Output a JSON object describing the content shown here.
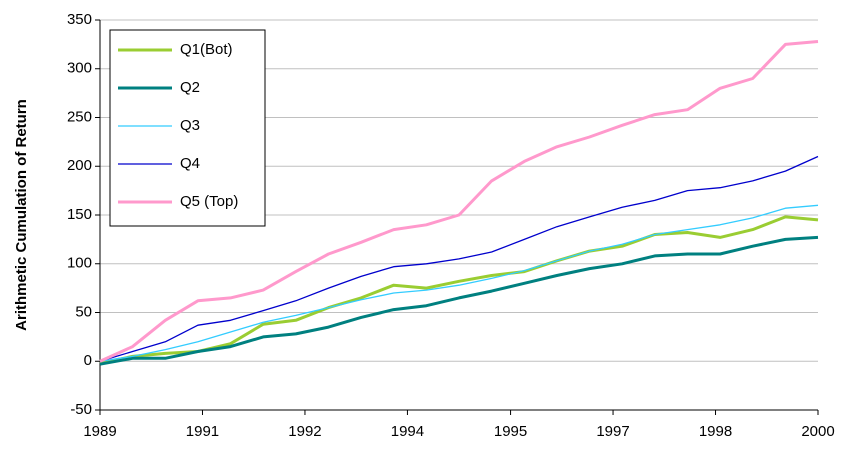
{
  "chart_data": {
    "type": "line",
    "y_label": "Arithmetic Cumulation of Return",
    "x": [
      1989,
      1989.5,
      1990,
      1990.5,
      1991,
      1991.5,
      1992,
      1992.5,
      1993,
      1993.5,
      1994,
      1994.5,
      1995,
      1995.5,
      1996,
      1996.5,
      1997,
      1997.5,
      1998,
      1998.5,
      1999,
      1999.5,
      2000
    ],
    "xlim": [
      1989,
      2000
    ],
    "xticks": [
      {
        "value": 1989,
        "label": "1989"
      },
      {
        "value": 1990.57,
        "label": "1991"
      },
      {
        "value": 1992.14,
        "label": "1992"
      },
      {
        "value": 1993.71,
        "label": "1994"
      },
      {
        "value": 1995.29,
        "label": "1995"
      },
      {
        "value": 1996.86,
        "label": "1997"
      },
      {
        "value": 1998.43,
        "label": "1998"
      },
      {
        "value": 2000,
        "label": "2000"
      }
    ],
    "ylim": [
      -50,
      350
    ],
    "yticks": [
      -50,
      0,
      50,
      100,
      150,
      200,
      250,
      300,
      350
    ],
    "grid": true,
    "legend": "top-left",
    "series": [
      {
        "name": "Q1(Bot)",
        "color": "#9acd32",
        "line_width": 3,
        "values": [
          -2,
          5,
          8,
          10,
          18,
          38,
          42,
          55,
          65,
          78,
          75,
          82,
          88,
          92,
          103,
          113,
          118,
          130,
          132,
          127,
          135,
          148,
          145
        ]
      },
      {
        "name": "Q2",
        "color": "#008080",
        "line_width": 3,
        "values": [
          -3,
          3,
          3,
          10,
          15,
          25,
          28,
          35,
          45,
          53,
          57,
          65,
          72,
          80,
          88,
          95,
          100,
          108,
          110,
          110,
          118,
          125,
          127
        ]
      },
      {
        "name": "Q3",
        "color": "#33ccff",
        "line_width": 1.3,
        "values": [
          0,
          5,
          12,
          20,
          30,
          40,
          47,
          55,
          63,
          70,
          73,
          78,
          85,
          93,
          103,
          113,
          120,
          130,
          135,
          140,
          147,
          157,
          160
        ]
      },
      {
        "name": "Q4",
        "color": "#0000cc",
        "line_width": 1.3,
        "values": [
          0,
          10,
          20,
          37,
          42,
          52,
          62,
          75,
          87,
          97,
          100,
          105,
          112,
          125,
          138,
          148,
          158,
          165,
          175,
          178,
          185,
          195,
          210
        ]
      },
      {
        "name": "Q5 (Top)",
        "color": "#ff99cc",
        "line_width": 3,
        "values": [
          0,
          15,
          42,
          62,
          65,
          73,
          92,
          110,
          122,
          135,
          140,
          150,
          185,
          205,
          220,
          230,
          242,
          253,
          258,
          280,
          290,
          325,
          328
        ]
      }
    ]
  }
}
